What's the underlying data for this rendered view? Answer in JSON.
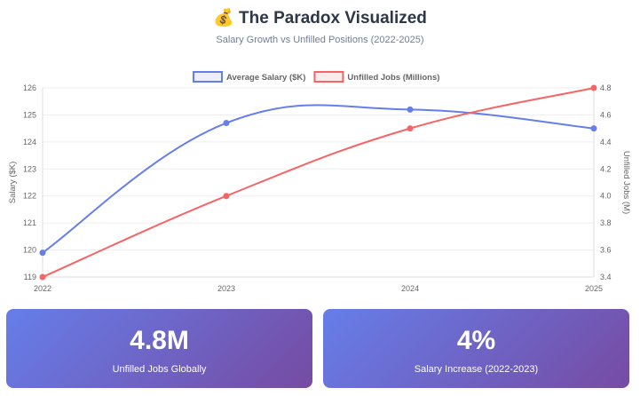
{
  "header": {
    "icon": "money-bag-icon",
    "title_emoji": "💰",
    "title": "The Paradox Visualized",
    "subtitle": "Salary Growth vs Unfilled Positions (2022-2025)"
  },
  "chart_data": {
    "type": "line",
    "categories": [
      "2022",
      "2023",
      "2024",
      "2025"
    ],
    "series": [
      {
        "name": "Average Salary ($K)",
        "axis": "left",
        "values": [
          119.9,
          124.7,
          125.2,
          124.5
        ],
        "color": "#667eea"
      },
      {
        "name": "Unfilled Jobs (Millions)",
        "axis": "right",
        "values": [
          3.4,
          4.0,
          4.5,
          4.8
        ],
        "color": "#f56565"
      }
    ],
    "y_left": {
      "label": "Salary ($K)",
      "range": [
        119,
        126
      ],
      "ticks": [
        "119",
        "120",
        "121",
        "122",
        "123",
        "124",
        "125",
        "126"
      ]
    },
    "y_right": {
      "label": "Unfilled Jobs (M)",
      "range": [
        3.4,
        4.8
      ],
      "ticks": [
        "3.4",
        "3.6",
        "3.8",
        "4.0",
        "4.2",
        "4.4",
        "4.6",
        "4.8"
      ]
    },
    "grid": true,
    "legend": "top"
  },
  "stats": [
    {
      "value": "4.8M",
      "label": "Unfilled Jobs Globally"
    },
    {
      "value": "4%",
      "label": "Salary Increase (2022-2023)"
    }
  ]
}
